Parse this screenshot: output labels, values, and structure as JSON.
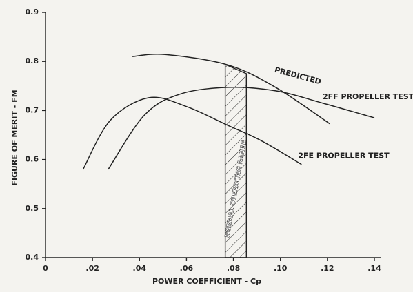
{
  "chart_data": {
    "type": "line",
    "xlabel": "POWER COEFFICIENT - Cp",
    "ylabel": "FIGURE OF MERIT - FM",
    "xlim": [
      0,
      0.14
    ],
    "ylim": [
      0.4,
      0.9
    ],
    "xticks": [
      0,
      {
        "value": 0.02,
        "label": ".02"
      },
      {
        "value": 0.04,
        "label": ".04"
      },
      {
        "value": 0.06,
        "label": ".06"
      },
      {
        "value": 0.08,
        "label": ".08"
      },
      {
        "value": 0.1,
        "label": ".10"
      },
      {
        "value": 0.12,
        "label": ".12"
      },
      {
        "value": 0.14,
        "label": ".14"
      }
    ],
    "yticks": [
      0.4,
      0.5,
      0.6,
      0.7,
      0.8,
      0.9
    ],
    "color": "#222222",
    "series": [
      {
        "name": "PREDICTED",
        "x": [
          0.037,
          0.051,
          0.0775,
          0.098,
          0.121
        ],
        "values": [
          0.81,
          0.814,
          0.793,
          0.747,
          0.673
        ]
      },
      {
        "name": "2FF PROPELLER TEST",
        "x": [
          0.0267,
          0.042,
          0.057,
          0.0775,
          0.098,
          0.118,
          0.14
        ],
        "values": [
          0.58,
          0.69,
          0.733,
          0.747,
          0.74,
          0.715,
          0.685
        ]
      },
      {
        "name": "2FE PROPELLER TEST",
        "x": [
          0.016,
          0.0276,
          0.044,
          0.06,
          0.0775,
          0.092,
          0.109
        ],
        "values": [
          0.58,
          0.68,
          0.726,
          0.708,
          0.67,
          0.638,
          0.59
        ]
      }
    ],
    "band": {
      "label": "NORMAL OPERATING RANGE",
      "x": [
        0.0765,
        0.0855
      ]
    }
  }
}
